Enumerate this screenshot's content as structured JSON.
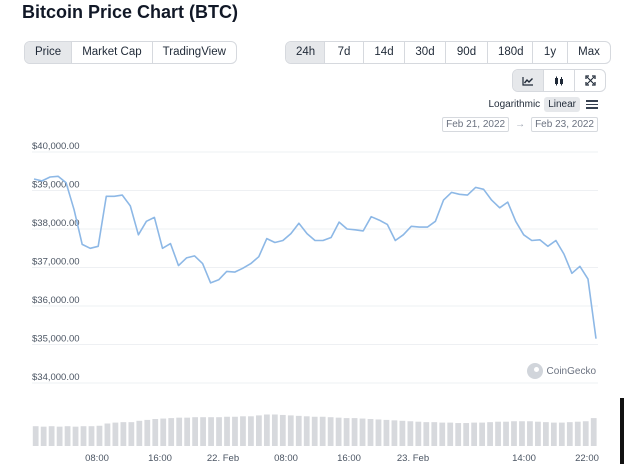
{
  "title": "Bitcoin Price Chart (BTC)",
  "view_tabs": [
    {
      "label": "Price",
      "active": true
    },
    {
      "label": "Market Cap",
      "active": false
    },
    {
      "label": "TradingView",
      "active": false
    }
  ],
  "range_tabs": [
    {
      "label": "24h",
      "active": true
    },
    {
      "label": "7d",
      "active": false
    },
    {
      "label": "14d",
      "active": false
    },
    {
      "label": "30d",
      "active": false
    },
    {
      "label": "90d",
      "active": false
    },
    {
      "label": "180d",
      "active": false
    },
    {
      "label": "1y",
      "active": false
    },
    {
      "label": "Max",
      "active": false
    }
  ],
  "chart_type_buttons": [
    {
      "icon": "line-chart-icon",
      "active": true
    },
    {
      "icon": "candlestick-icon",
      "active": false
    },
    {
      "icon": "fullscreen-icon",
      "active": false
    }
  ],
  "scale": {
    "logarithmic": "Logarithmic",
    "linear": "Linear",
    "active": "Linear"
  },
  "date_range": {
    "from": "Feb 21, 2022",
    "to": "Feb 23, 2022"
  },
  "watermark": "CoinGecko",
  "colors": {
    "line": "#8db8e6",
    "grid": "#eef0f3",
    "volume": "#d7d9dd",
    "active_bg": "#e6e8eb"
  },
  "chart_data": {
    "type": "line",
    "title": "Bitcoin Price Chart (BTC)",
    "x_tick_labels": [
      "08:00",
      "16:00",
      "22. Feb",
      "08:00",
      "16:00",
      "23. Feb",
      "14:00",
      "22:00"
    ],
    "y_tick_labels": [
      "$34,000.00",
      "$35,000.00",
      "$36,000.00",
      "$37,000.00",
      "$38,000.00",
      "$39,000.00",
      "$40,000.00"
    ],
    "ylim": [
      34000,
      40000
    ],
    "grid": true,
    "series": [
      {
        "values": [
          39300,
          39250,
          39350,
          39370,
          39200,
          38500,
          37600,
          37500,
          37550,
          38850,
          38850,
          38880,
          38600,
          37850,
          38200,
          38300,
          37500,
          37620,
          37050,
          37250,
          37300,
          37100,
          36600,
          36680,
          36900,
          36880,
          36980,
          37100,
          37280,
          37750,
          37650,
          37700,
          37880,
          38150,
          37880,
          37700,
          37700,
          37780,
          38180,
          38000,
          37980,
          37950,
          38320,
          38230,
          38120,
          37700,
          37850,
          38070,
          38050,
          38050,
          38200,
          38750,
          38950,
          38900,
          38880,
          39080,
          39030,
          38750,
          38550,
          38700,
          38200,
          37850,
          37700,
          37720,
          37550,
          37700,
          37350,
          36850,
          37030,
          36700,
          35150
        ]
      }
    ],
    "volume": {
      "values": [
        0.44,
        0.43,
        0.44,
        0.43,
        0.44,
        0.43,
        0.44,
        0.44,
        0.45,
        0.5,
        0.52,
        0.53,
        0.53,
        0.56,
        0.58,
        0.6,
        0.61,
        0.62,
        0.63,
        0.63,
        0.64,
        0.64,
        0.64,
        0.64,
        0.65,
        0.65,
        0.66,
        0.66,
        0.68,
        0.7,
        0.7,
        0.69,
        0.68,
        0.67,
        0.66,
        0.65,
        0.65,
        0.64,
        0.63,
        0.62,
        0.62,
        0.61,
        0.6,
        0.59,
        0.58,
        0.57,
        0.56,
        0.55,
        0.54,
        0.53,
        0.53,
        0.52,
        0.52,
        0.51,
        0.51,
        0.52,
        0.52,
        0.53,
        0.54,
        0.54,
        0.55,
        0.55,
        0.55,
        0.54,
        0.53,
        0.52,
        0.52,
        0.53,
        0.54,
        0.55,
        0.62
      ]
    }
  }
}
